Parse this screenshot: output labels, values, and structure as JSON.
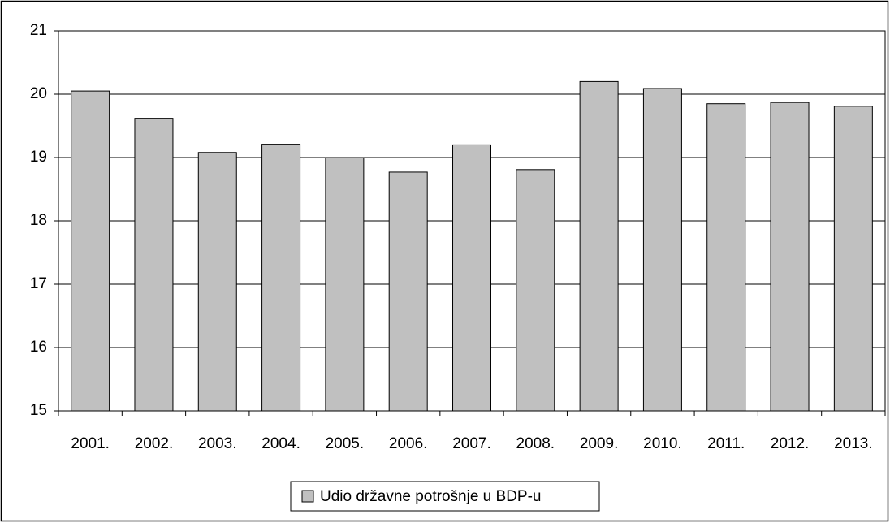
{
  "chart_data": {
    "type": "bar",
    "categories": [
      "2001.",
      "2002.",
      "2003.",
      "2004.",
      "2005.",
      "2006.",
      "2007.",
      "2008.",
      "2009.",
      "2010.",
      "2011.",
      "2012.",
      "2013."
    ],
    "series": [
      {
        "name": "Udio državne potrošnje u BDP-u",
        "color": "#c0c0c0",
        "values": [
          20.05,
          19.62,
          19.08,
          19.21,
          19.0,
          18.77,
          19.2,
          18.81,
          20.2,
          20.09,
          19.85,
          19.87,
          19.81
        ]
      }
    ],
    "ylim": [
      15,
      21
    ],
    "yticks": [
      15,
      16,
      17,
      18,
      19,
      20,
      21
    ],
    "grid": true,
    "legend": "bottom"
  }
}
